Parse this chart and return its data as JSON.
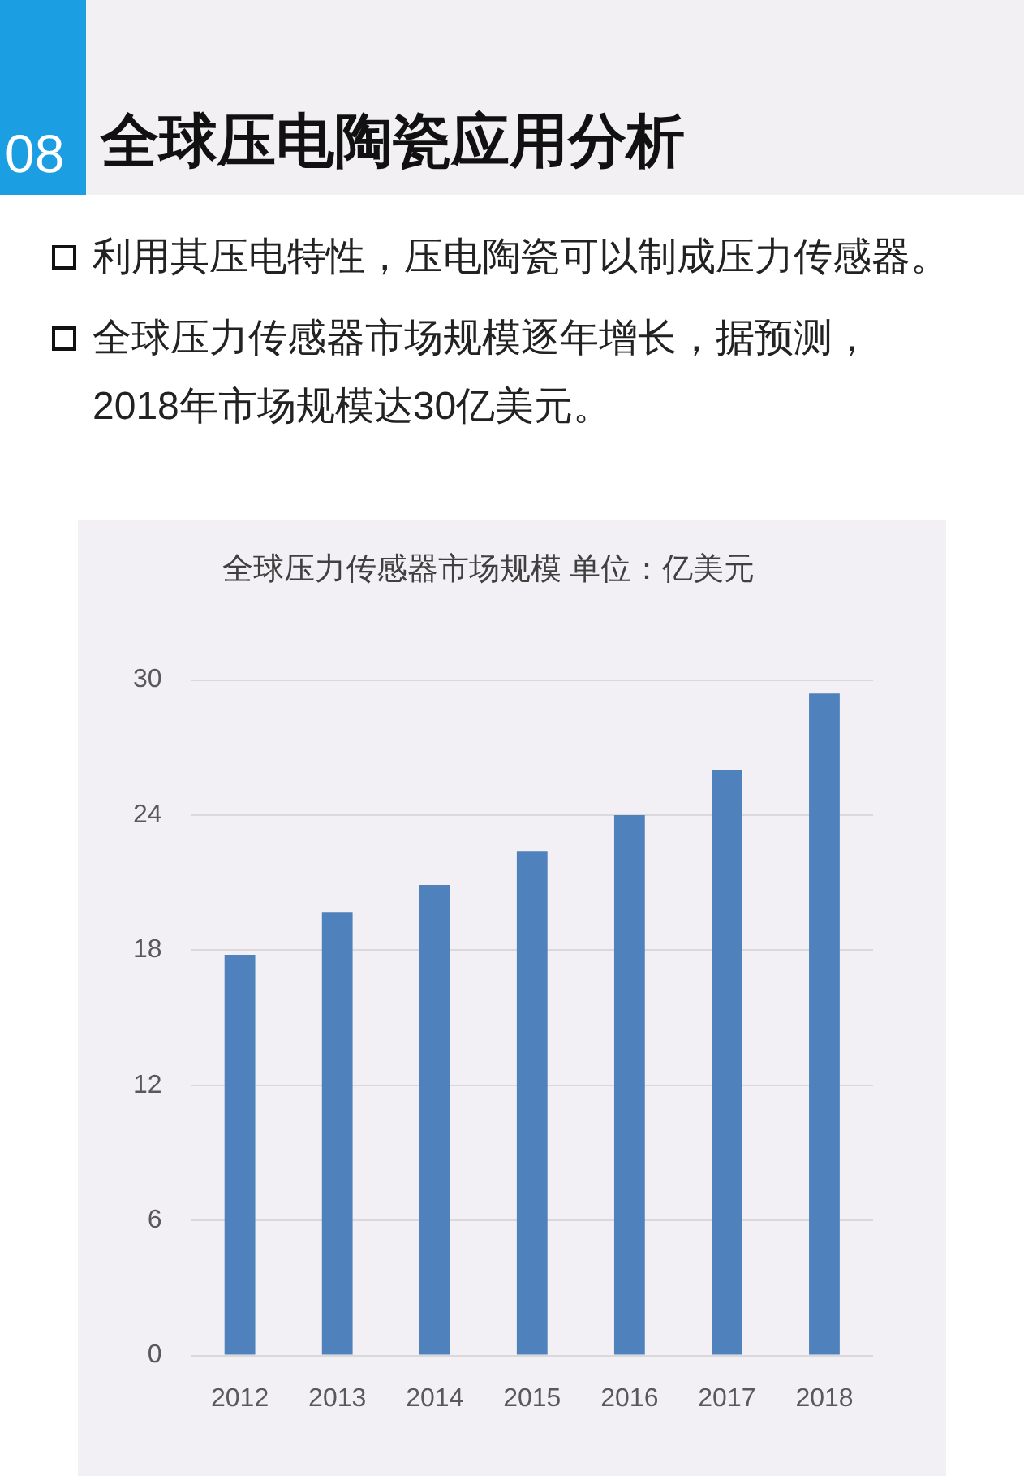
{
  "chart_data": {
    "type": "bar",
    "title": "全球压力传感器市场规模 单位：亿美元",
    "categories": [
      "2012",
      "2013",
      "2014",
      "2015",
      "2016",
      "2017",
      "2018"
    ],
    "values": [
      17.8,
      19.7,
      20.9,
      22.4,
      24.0,
      26.0,
      29.4
    ],
    "color": "#4f81bd",
    "ylim": [
      0,
      30
    ],
    "yticks": [
      0,
      6,
      12,
      18,
      24,
      30
    ],
    "grid": "y",
    "annotations": [
      "08",
      "全球压电陶瓷应用分析",
      "利用其压电特性，压电陶瓷可以制成压力传感器。",
      "全球压力传感器市场规模逐年增长，据预测，2018年市场规模达30亿美元。"
    ]
  }
}
